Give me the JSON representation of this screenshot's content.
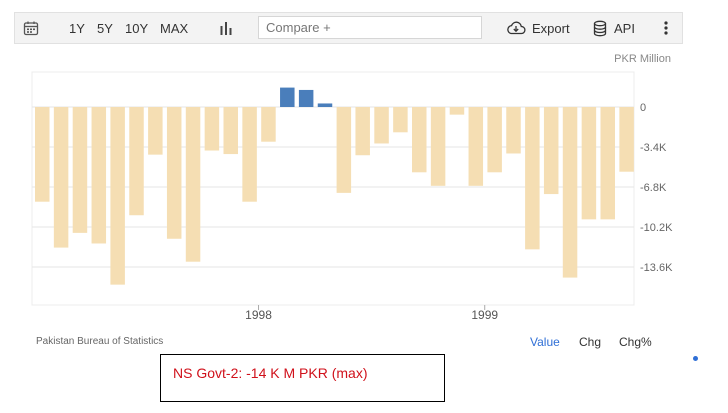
{
  "toolbar": {
    "range_buttons": [
      "1Y",
      "5Y",
      "10Y",
      "MAX"
    ],
    "compare_placeholder": "Compare +",
    "export_label": "Export",
    "api_label": "API",
    "icons": [
      "calendar-icon",
      "bar-chart-icon",
      "cloud-download-icon",
      "database-icon",
      "more-vertical-icon"
    ]
  },
  "unit_label": "PKR Million",
  "source": "Pakistan Bureau of Statistics",
  "view_tabs": [
    "Value",
    "Chg",
    "Chg%"
  ],
  "active_tab": "Value",
  "annotation": "NS Govt-2: -14 K M PKR (max)",
  "colors": {
    "positive": "#4a7ebb",
    "negative": "#f5deb3",
    "accent": "#2f6fd6",
    "annotation": "#d0111b"
  },
  "chart_data": {
    "type": "bar",
    "title": "",
    "xlabel": "",
    "ylabel": "PKR Million",
    "ylim": [
      -16600,
      0
    ],
    "y_ticks": [
      0,
      -3400,
      -6800,
      -10200,
      -13600
    ],
    "y_tick_labels": [
      "0",
      "-3.4K",
      "-6.8K",
      "-10.2K",
      "-13.6K"
    ],
    "x_tick_labels": [
      "1998",
      "1999"
    ],
    "grid": "horizontal",
    "period": "monthly, Jan 1997 - Dec 1999",
    "series": [
      {
        "values": [
          -8050,
          -11950,
          -10700,
          -11600,
          -15100,
          -9200,
          -4050,
          -11200,
          -13150,
          -3700,
          -4000,
          -8050,
          -2950,
          1650,
          1450,
          300,
          -7300,
          -4100,
          -3100,
          -2150,
          -5550,
          -6700,
          -650,
          -6700,
          -5550,
          -3950,
          -12100,
          -7400,
          -14500,
          -9550,
          -9550,
          -5500
        ]
      }
    ]
  }
}
